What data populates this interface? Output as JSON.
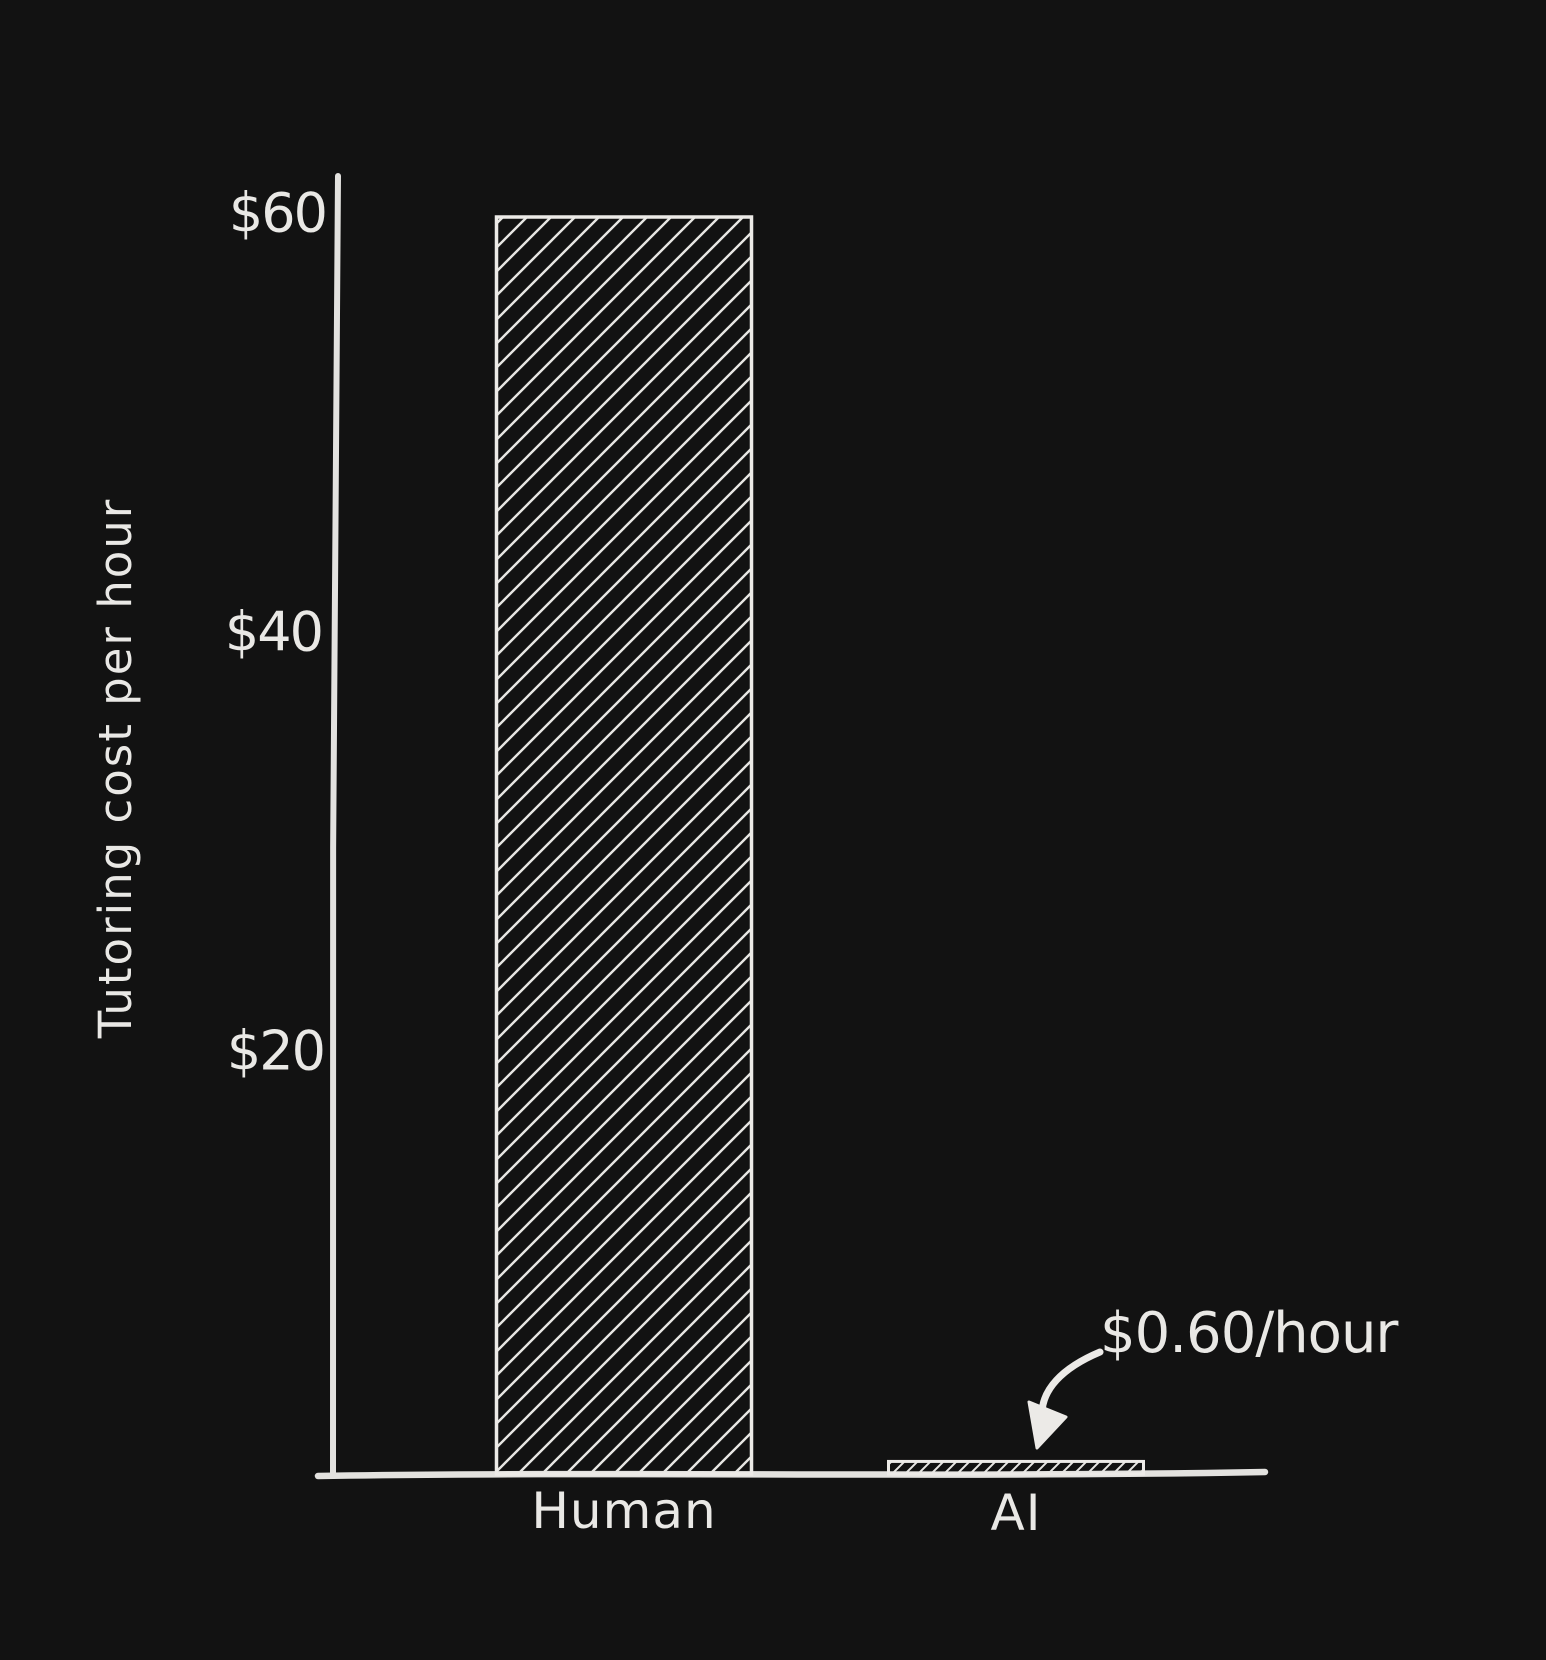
{
  "chart_data": {
    "type": "bar",
    "title": "",
    "categories": [
      "Human",
      "AI"
    ],
    "values": [
      60,
      0.6
    ],
    "xlabel": "",
    "ylabel": "Tutoring cost per hour",
    "ylim": [
      0,
      62
    ],
    "yticks": [
      {
        "value": 20,
        "label": "$20"
      },
      {
        "value": 40,
        "label": "$40"
      },
      {
        "value": 60,
        "label": "$60"
      }
    ],
    "annotation": {
      "text": "$0.60/hour",
      "points_to": "AI"
    },
    "legend": false,
    "grid": false,
    "style": "hand-drawn hatched bars on dark background",
    "colors": {
      "background": "#121212",
      "stroke": "#e7e6e3",
      "text": "#e9e8e5"
    }
  }
}
